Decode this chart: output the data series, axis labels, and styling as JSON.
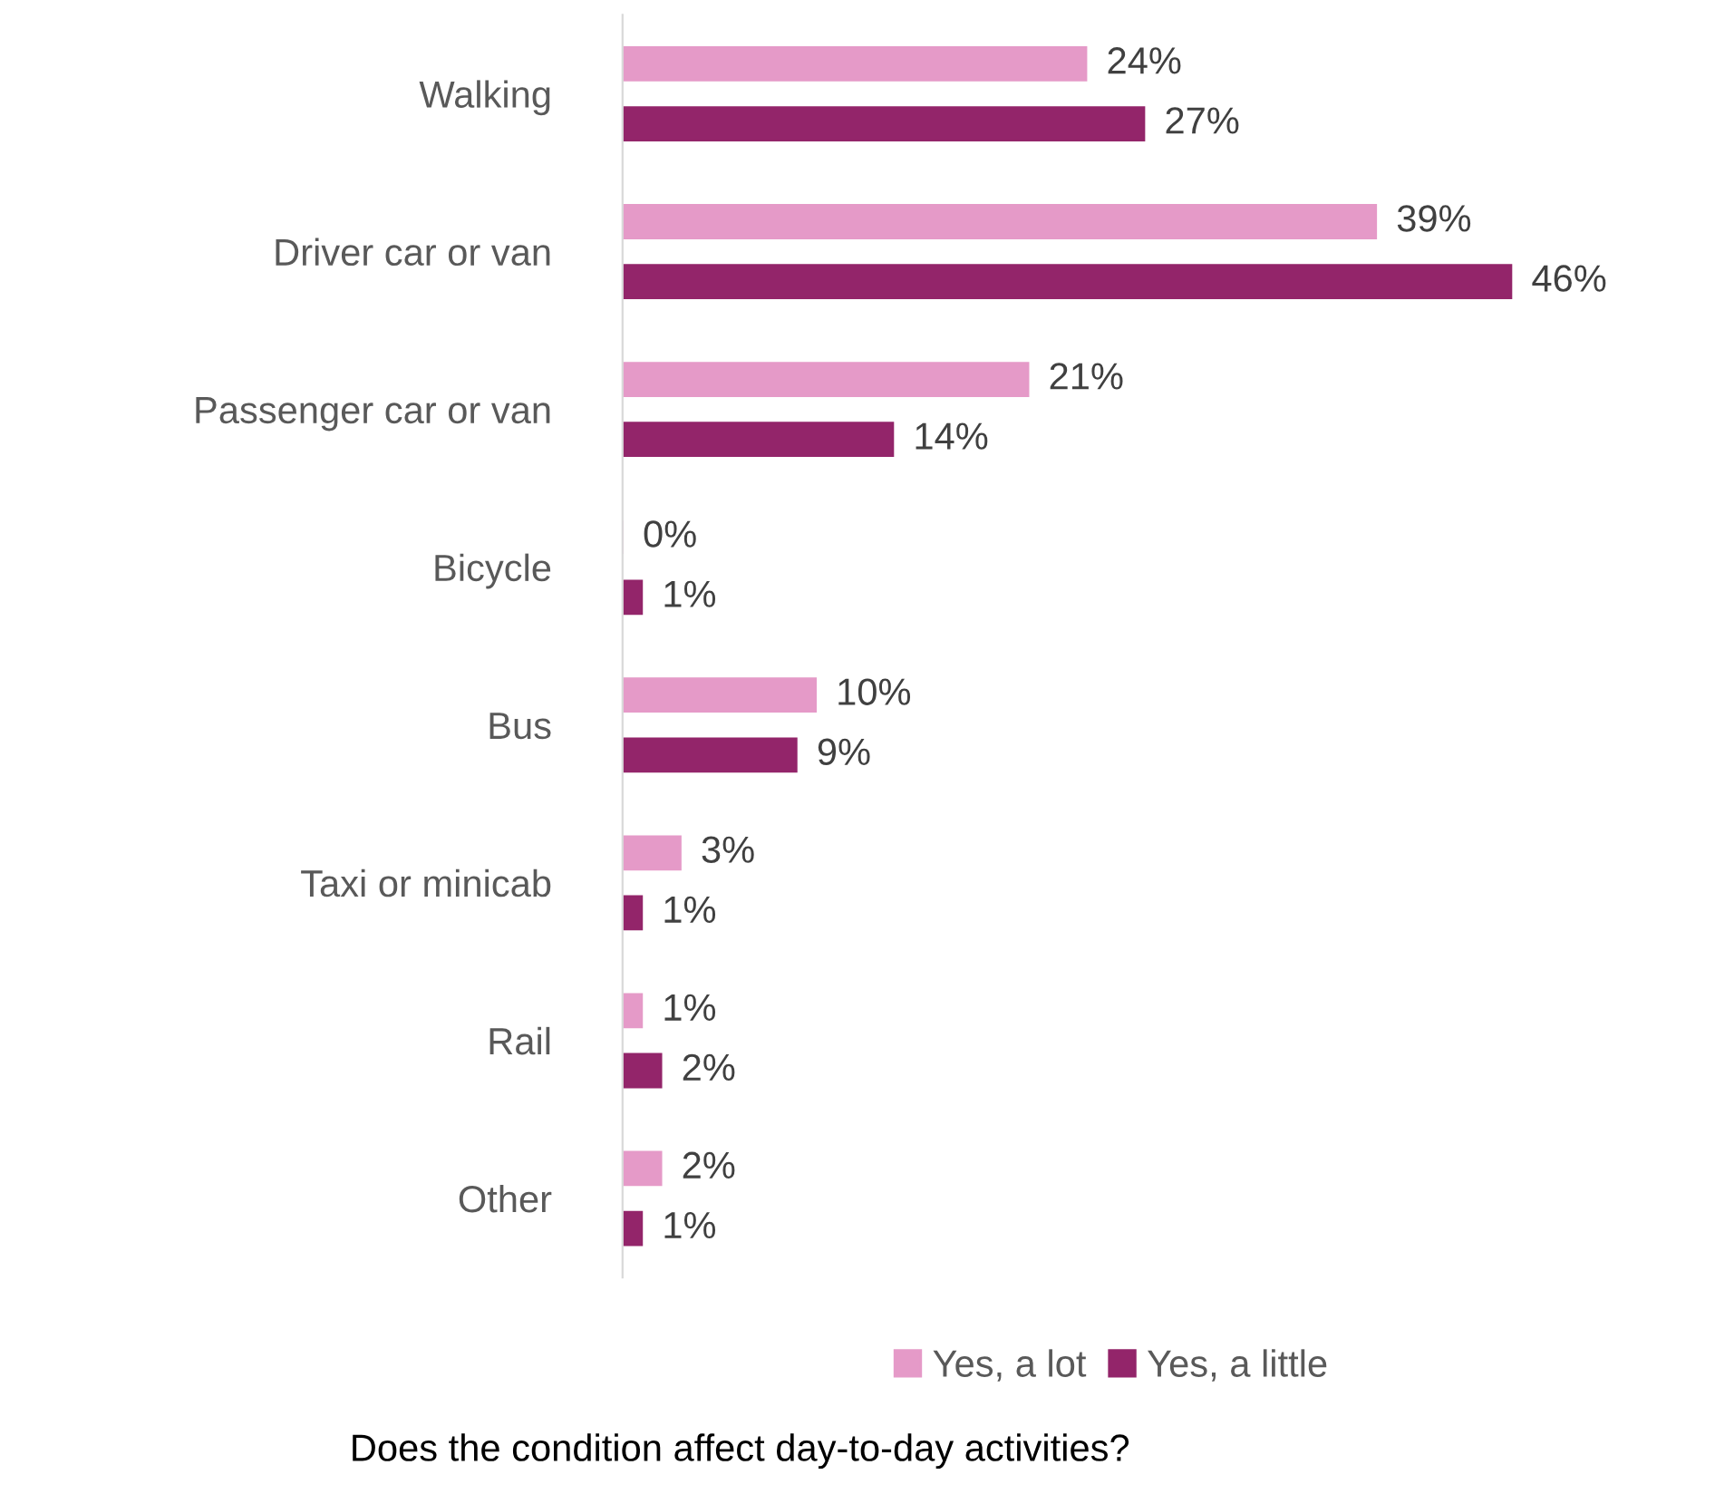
{
  "chart_data": {
    "type": "bar",
    "orientation": "horizontal",
    "xlabel": "Does the condition affect day-to-day activities?",
    "categories": [
      "Walking",
      "Driver car or van",
      "Passenger car or van",
      "Bicycle",
      "Bus",
      "Taxi or minicab",
      "Rail",
      "Other"
    ],
    "series": [
      {
        "name": "Yes, a lot",
        "color": "#e59ac8",
        "values": [
          24,
          39,
          21,
          0,
          10,
          3,
          1,
          2
        ],
        "value_labels": [
          "24%",
          "39%",
          "21%",
          "0%",
          "10%",
          "3%",
          "1%",
          "2%"
        ]
      },
      {
        "name": "Yes, a little",
        "color": "#93256a",
        "values": [
          27,
          46,
          14,
          1,
          9,
          1,
          2,
          1
        ],
        "value_labels": [
          "27%",
          "46%",
          "14%",
          "1%",
          "9%",
          "1%",
          "2%",
          "1%"
        ]
      }
    ],
    "legend": "bottom",
    "grid": false
  }
}
